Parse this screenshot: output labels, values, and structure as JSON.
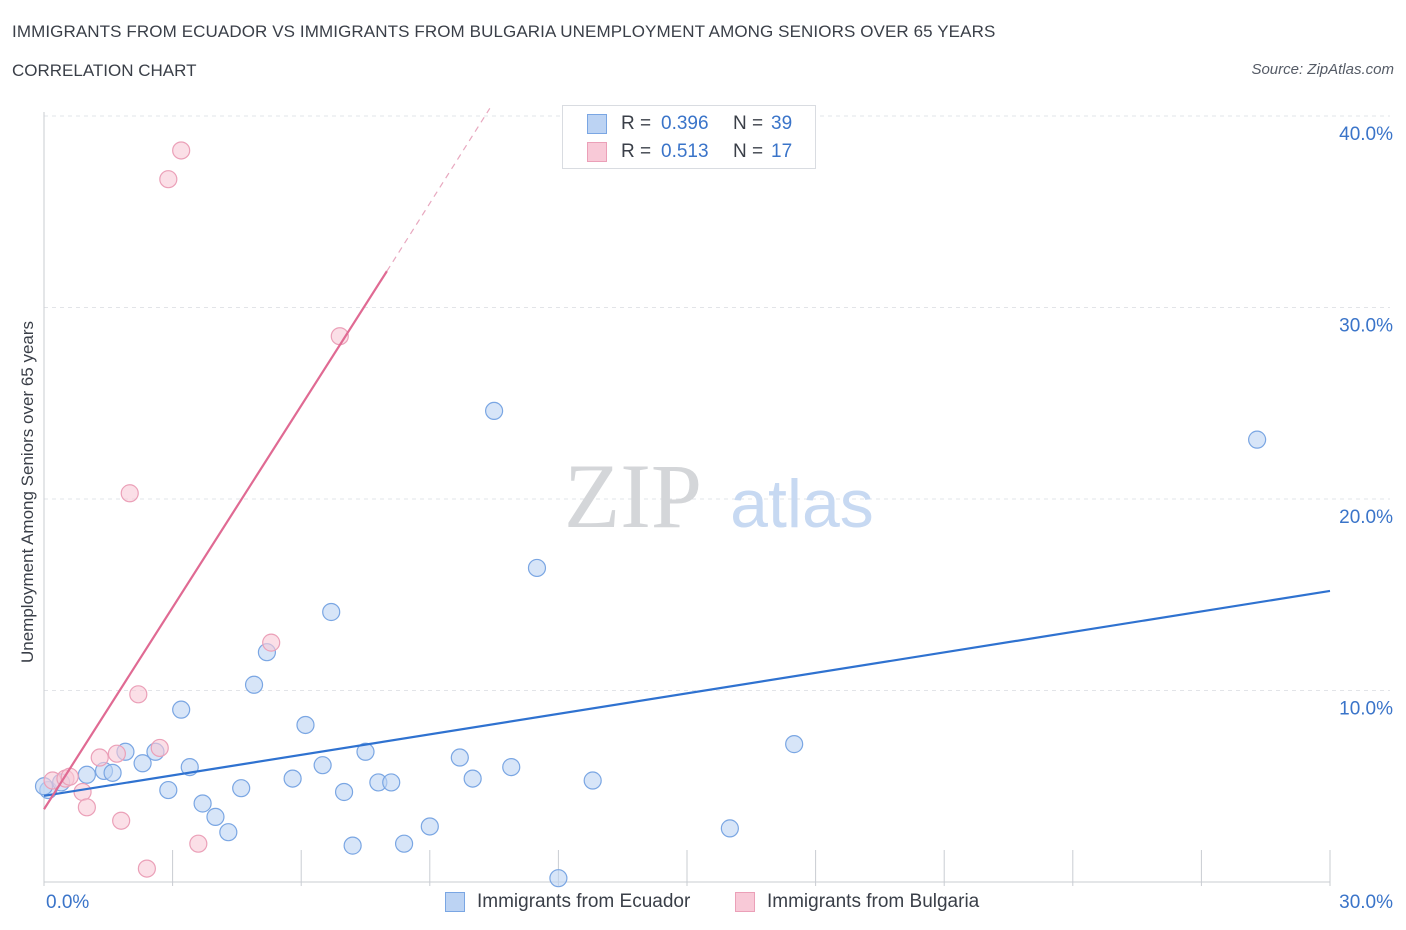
{
  "header": {
    "title": "IMMIGRANTS FROM ECUADOR VS IMMIGRANTS FROM BULGARIA UNEMPLOYMENT AMONG SENIORS OVER 65 YEARS",
    "subtitle": "CORRELATION CHART",
    "source": "Source: ZipAtlas.com"
  },
  "watermark": {
    "zip": "ZIP",
    "atlas": "atlas"
  },
  "legend": {
    "ecuador": {
      "r_label": "R =",
      "r_value": "0.396",
      "n_label": "N =",
      "n_value": "39"
    },
    "bulgaria": {
      "r_label": "R =",
      "r_value": "0.513",
      "n_label": "N =",
      "n_value": "17"
    }
  },
  "colors": {
    "ecuador_fill": "#bcd3f3",
    "ecuador_stroke": "#7aa6e3",
    "ecuador_line": "#2f72d0",
    "bulgaria_fill": "#f8c9d7",
    "bulgaria_stroke": "#eba0b8",
    "bulgaria_line": "#e06a93",
    "tick_text": "#3a74c9"
  },
  "chart_data": {
    "type": "scatter",
    "title": "IMMIGRANTS FROM ECUADOR VS IMMIGRANTS FROM BULGARIA UNEMPLOYMENT AMONG SENIORS OVER 65 YEARS",
    "xlabel": "",
    "ylabel": "Unemployment Among Seniors over 65 years",
    "xlim": [
      0,
      30
    ],
    "ylim": [
      0,
      40
    ],
    "x_tick_labels": [
      "0.0%",
      "30.0%"
    ],
    "y_ticks": [
      10,
      20,
      30,
      40
    ],
    "y_tick_labels": [
      "10.0%",
      "20.0%",
      "30.0%",
      "40.0%"
    ],
    "grid": true,
    "legend_position": "top-center",
    "series": [
      {
        "name": "Immigrants from Ecuador",
        "points": [
          [
            0.1,
            4.8
          ],
          [
            0.4,
            5.2
          ],
          [
            1.0,
            5.6
          ],
          [
            1.4,
            5.8
          ],
          [
            1.6,
            5.7
          ],
          [
            1.9,
            6.8
          ],
          [
            2.3,
            6.2
          ],
          [
            2.6,
            6.8
          ],
          [
            2.9,
            4.8
          ],
          [
            3.2,
            9.0
          ],
          [
            3.4,
            6.0
          ],
          [
            3.7,
            4.1
          ],
          [
            4.0,
            3.4
          ],
          [
            4.3,
            2.6
          ],
          [
            4.6,
            4.9
          ],
          [
            4.9,
            10.3
          ],
          [
            5.2,
            12.0
          ],
          [
            5.8,
            5.4
          ],
          [
            6.1,
            8.2
          ],
          [
            6.5,
            6.1
          ],
          [
            6.7,
            14.1
          ],
          [
            7.0,
            4.7
          ],
          [
            7.2,
            1.9
          ],
          [
            7.5,
            6.8
          ],
          [
            7.8,
            5.2
          ],
          [
            8.1,
            5.2
          ],
          [
            8.4,
            2.0
          ],
          [
            9.0,
            2.9
          ],
          [
            9.7,
            6.5
          ],
          [
            10.0,
            5.4
          ],
          [
            10.5,
            24.6
          ],
          [
            10.9,
            6.0
          ],
          [
            11.5,
            16.4
          ],
          [
            12.0,
            0.2
          ],
          [
            12.8,
            5.3
          ],
          [
            16.0,
            2.8
          ],
          [
            17.5,
            7.2
          ],
          [
            28.3,
            23.1
          ],
          [
            0.0,
            5.0
          ]
        ],
        "trend": {
          "x": [
            0,
            30
          ],
          "y": [
            4.5,
            15.2
          ]
        }
      },
      {
        "name": "Immigrants from Bulgaria",
        "points": [
          [
            0.2,
            5.3
          ],
          [
            0.5,
            5.4
          ],
          [
            0.6,
            5.5
          ],
          [
            0.9,
            4.7
          ],
          [
            1.0,
            3.9
          ],
          [
            1.3,
            6.5
          ],
          [
            1.7,
            6.7
          ],
          [
            1.8,
            3.2
          ],
          [
            2.0,
            20.3
          ],
          [
            2.2,
            9.8
          ],
          [
            2.4,
            0.7
          ],
          [
            2.7,
            7.0
          ],
          [
            2.9,
            36.7
          ],
          [
            3.2,
            38.2
          ],
          [
            3.6,
            2.0
          ],
          [
            5.3,
            12.5
          ],
          [
            6.9,
            28.5
          ]
        ],
        "trend": {
          "x": [
            0,
            8.0
          ],
          "y": [
            3.8,
            31.9
          ]
        },
        "trend_dashed": {
          "x": [
            8.0,
            10.4
          ],
          "y": [
            31.9,
            40.4
          ]
        }
      }
    ]
  }
}
